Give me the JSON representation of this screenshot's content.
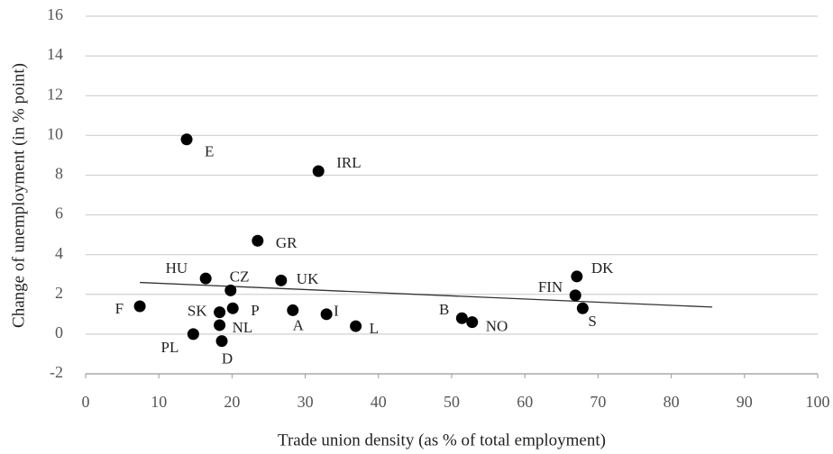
{
  "chart_data": {
    "type": "scatter",
    "x_label": "Trade union density (as % of total employment)",
    "y_label": "Change of unemployment (in % point)",
    "series": [
      {
        "color": "#000000",
        "labels": [
          "E",
          "IRL",
          "GR",
          "HU",
          "CZ",
          "UK",
          "F",
          "SK",
          "P",
          "NL",
          "PL",
          "D",
          "A",
          "I",
          "L",
          "B",
          "NO",
          "DK",
          "FIN",
          "S"
        ],
        "x": [
          13.8,
          31.8,
          23.5,
          16.4,
          19.8,
          26.7,
          7.4,
          18.3,
          20.1,
          18.3,
          14.7,
          18.6,
          28.3,
          32.9,
          36.9,
          51.4,
          52.8,
          67.1,
          66.9,
          67.9
        ],
        "values": [
          9.8,
          8.2,
          4.7,
          2.8,
          2.2,
          2.7,
          1.4,
          1.1,
          1.3,
          0.45,
          0,
          -0.35,
          1.2,
          1.0,
          0.4,
          0.8,
          0.6,
          2.9,
          1.95,
          1.3
        ]
      }
    ],
    "trendline": {
      "x": [
        7.4,
        85.6
      ],
      "values": [
        2.6,
        1.36
      ]
    },
    "xlim": [
      0,
      100
    ],
    "xticks": [
      0,
      10,
      20,
      30,
      40,
      50,
      60,
      70,
      80,
      90,
      100
    ],
    "ylim": [
      -2,
      16
    ],
    "yticks": [
      -2,
      0,
      2,
      4,
      6,
      8,
      10,
      12,
      14,
      16
    ],
    "grid": true
  }
}
